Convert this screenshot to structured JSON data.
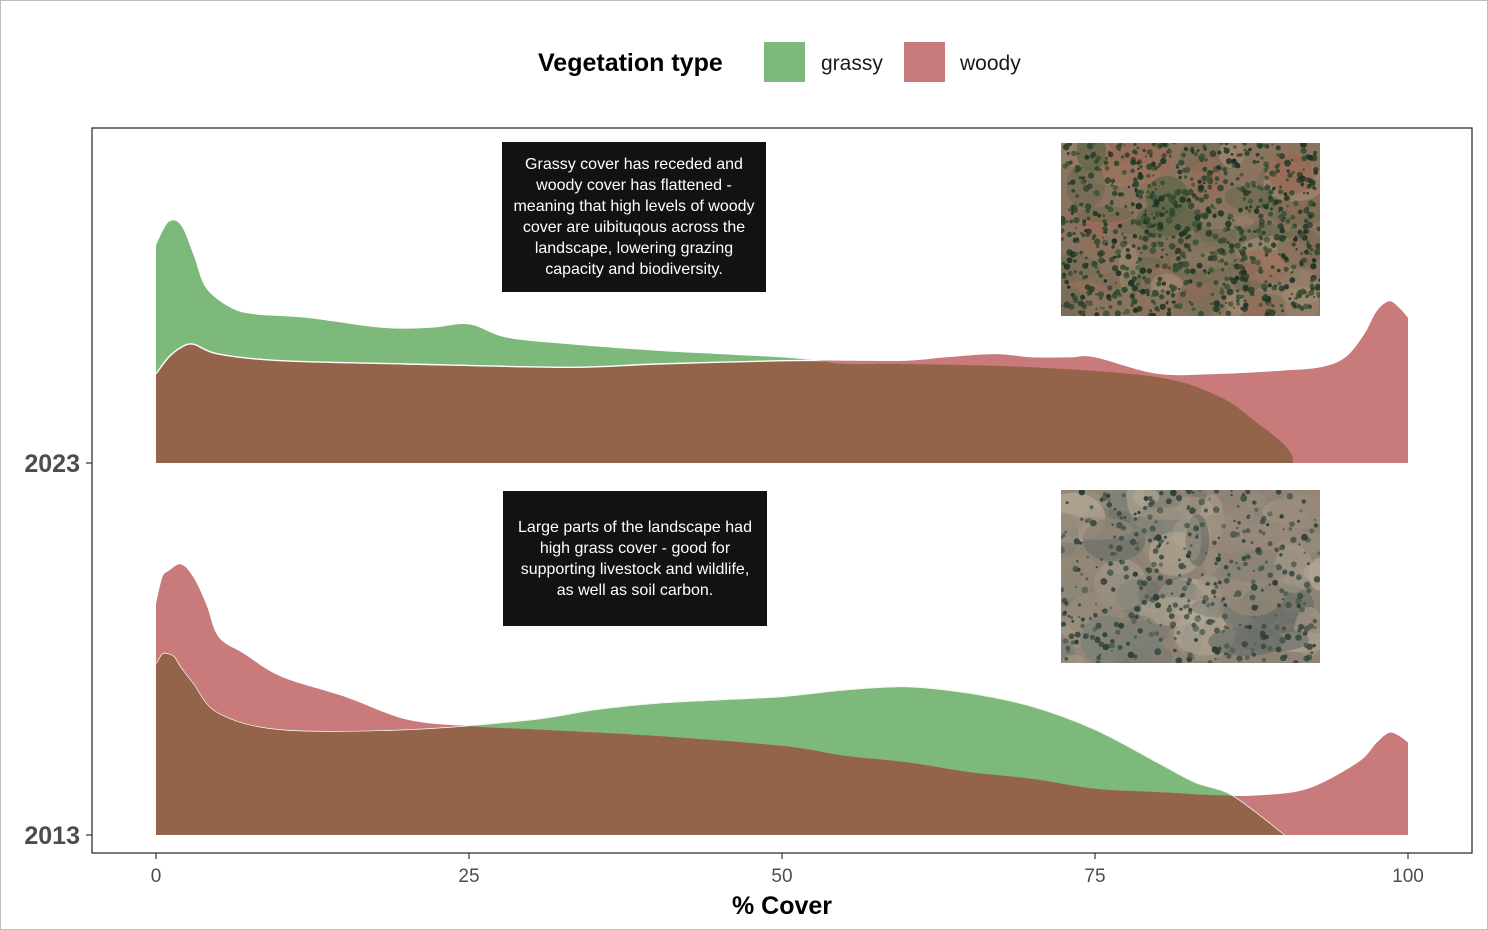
{
  "chart_data": {
    "type": "ridgeline-density",
    "legend": {
      "title": "Vegetation type",
      "placement": "top",
      "items": [
        {
          "label": "grassy",
          "color": "#7cb97a"
        },
        {
          "label": "woody",
          "color": "#c97b7b"
        }
      ]
    },
    "overlap_color": "#94644a",
    "xlabel": "% Cover",
    "ylabel": "",
    "xlim": [
      0,
      100
    ],
    "x_ticks": [
      "0",
      "25",
      "50",
      "75",
      "100"
    ],
    "x_tick_values": [
      0,
      25,
      50,
      75,
      100
    ],
    "rows": [
      "2023",
      "2013"
    ],
    "grid": false,
    "series": [
      {
        "year": "2023",
        "name": "grassy",
        "x": [
          0,
          1,
          2,
          3,
          4,
          6,
          8,
          12,
          18,
          22,
          25,
          28,
          33,
          40,
          45,
          50,
          53,
          55,
          60,
          70,
          80,
          85,
          88,
          90,
          90.8
        ],
        "y": [
          0.66,
          0.73,
          0.72,
          0.63,
          0.53,
          0.47,
          0.45,
          0.44,
          0.41,
          0.41,
          0.42,
          0.38,
          0.36,
          0.34,
          0.33,
          0.32,
          0.31,
          0.3,
          0.3,
          0.29,
          0.26,
          0.2,
          0.12,
          0.06,
          0.02
        ]
      },
      {
        "year": "2023",
        "name": "woody",
        "x": [
          0,
          1,
          2,
          3,
          5,
          10,
          20,
          33,
          40,
          50,
          55,
          60,
          63,
          67,
          70,
          73,
          75,
          80,
          85,
          90,
          93,
          95,
          96.5,
          97.5,
          98.5,
          99.3,
          100
        ],
        "y": [
          0.27,
          0.32,
          0.35,
          0.36,
          0.33,
          0.31,
          0.3,
          0.29,
          0.3,
          0.31,
          0.31,
          0.31,
          0.32,
          0.33,
          0.32,
          0.32,
          0.32,
          0.27,
          0.27,
          0.28,
          0.29,
          0.32,
          0.39,
          0.46,
          0.49,
          0.47,
          0.44
        ]
      },
      {
        "year": "2013",
        "name": "grassy",
        "x": [
          0,
          0.5,
          1,
          1.5,
          2,
          3,
          5,
          10,
          20,
          30,
          35,
          40,
          45,
          50,
          55,
          60,
          65,
          70,
          75,
          80,
          83,
          86,
          90.2
        ],
        "y": [
          0.52,
          0.55,
          0.55,
          0.54,
          0.51,
          0.46,
          0.37,
          0.32,
          0.32,
          0.35,
          0.38,
          0.4,
          0.41,
          0.42,
          0.44,
          0.45,
          0.43,
          0.39,
          0.32,
          0.22,
          0.16,
          0.12,
          0.0
        ]
      },
      {
        "year": "2013",
        "name": "woody",
        "x": [
          0,
          0.5,
          1,
          2,
          3,
          4,
          5,
          7,
          10,
          15,
          20,
          25,
          30,
          40,
          50,
          55,
          60,
          65,
          70,
          75,
          80,
          85,
          88,
          92,
          96,
          97.5,
          98.5,
          99.3,
          100
        ],
        "y": [
          0.7,
          0.78,
          0.8,
          0.82,
          0.78,
          0.7,
          0.6,
          0.55,
          0.48,
          0.42,
          0.35,
          0.33,
          0.32,
          0.3,
          0.27,
          0.24,
          0.22,
          0.19,
          0.17,
          0.14,
          0.13,
          0.12,
          0.12,
          0.14,
          0.22,
          0.28,
          0.31,
          0.3,
          0.28
        ]
      }
    ],
    "annotations": [
      {
        "year": "2023",
        "text": "Grassy cover has receded and\nwoody cover has flattened -\nmeaning that high levels of woody\ncover are uibituqous across the\nlandscape, lowering grazing\ncapacity and biodiversity."
      },
      {
        "year": "2013",
        "text": "Large parts of the landscape had\nhigh grass cover - good for\nsupporting livestock and wildlife,\nas well as soil carbon."
      }
    ],
    "images": [
      {
        "year": "2023",
        "description_name": "satellite-image-2023"
      },
      {
        "year": "2013",
        "description_name": "satellite-image-2013"
      }
    ]
  }
}
